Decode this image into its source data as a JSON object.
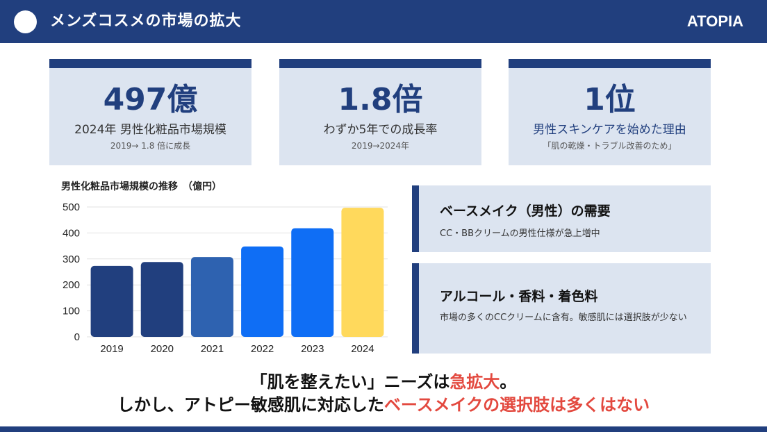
{
  "header": {
    "title": "メンズコスメの市場の拡大",
    "brand": "ATOPIA"
  },
  "stats": [
    {
      "big": "497億",
      "label": "2024年 男性化粧品市場規模",
      "sub": "2019→ 1.8 倍に成長"
    },
    {
      "big": "1.8倍",
      "label": "わずか5年での成長率",
      "sub": "2019→2024年"
    },
    {
      "big": "1位",
      "label": "男性スキンケアを始めた理由",
      "sub": "「肌の乾燥・トラブル改善のため」"
    }
  ],
  "chart_title": "男性化粧品市場規模の推移　（億円）",
  "chart_data": {
    "type": "bar",
    "title": "男性化粧品市場規模の推移　（億円）",
    "categories": [
      "2019",
      "2020",
      "2021",
      "2022",
      "2023",
      "2024"
    ],
    "values": [
      273,
      288,
      307,
      348,
      418,
      497
    ],
    "colors": [
      "#213f7e",
      "#213f7e",
      "#2e62b0",
      "#0f6ef5",
      "#0f6ef5",
      "#ffd95c"
    ],
    "ylim": [
      0,
      500
    ],
    "yticks": [
      0,
      100,
      200,
      300,
      400,
      500
    ],
    "grid": true
  },
  "cards": [
    {
      "heading": "ベースメイク（男性）の需要",
      "desc": "CC・BBクリームの男性仕様が急上増中"
    },
    {
      "heading": "アルコール・香料・着色料",
      "desc": "市場の多くのCCクリームに含有。敏感肌には選択肢が少ない"
    }
  ],
  "conclusion": {
    "line1_a": "「肌を整えたい」ニーズは",
    "line1_b": "急拡大",
    "line1_c": "。",
    "line2_a": "しかし、アトピー敏感肌に対応した",
    "line2_b": "ベースメイクの選択肢は多くはない"
  }
}
